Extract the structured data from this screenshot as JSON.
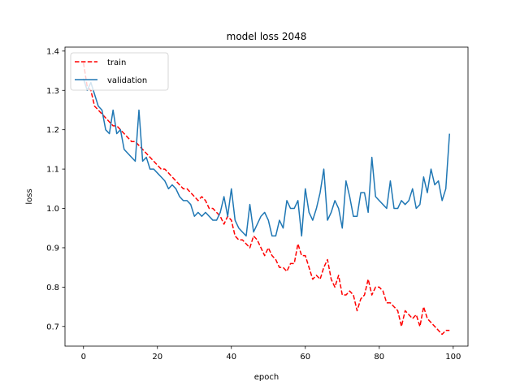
{
  "chart_data": {
    "type": "line",
    "title": "model loss 2048",
    "xlabel": "epoch",
    "ylabel": "loss",
    "xlim": [
      -5,
      104
    ],
    "ylim": [
      0.65,
      1.41
    ],
    "xticks": [
      0,
      20,
      40,
      60,
      80,
      100
    ],
    "yticks": [
      0.7,
      0.8,
      0.9,
      1.0,
      1.1,
      1.2,
      1.3,
      1.4
    ],
    "xtick_labels": [
      "0",
      "20",
      "40",
      "60",
      "80",
      "100"
    ],
    "ytick_labels": [
      "0.7",
      "0.8",
      "0.9",
      "1.0",
      "1.1",
      "1.2",
      "1.3",
      "1.4"
    ],
    "grid": false,
    "legend_position": "top-left",
    "series": [
      {
        "name": "train",
        "color": "#ff0000",
        "style": "dashed",
        "values": [
          1.37,
          1.31,
          1.3,
          1.26,
          1.25,
          1.24,
          1.23,
          1.22,
          1.21,
          1.21,
          1.2,
          1.19,
          1.18,
          1.17,
          1.17,
          1.16,
          1.15,
          1.14,
          1.13,
          1.12,
          1.11,
          1.1,
          1.1,
          1.09,
          1.08,
          1.07,
          1.06,
          1.05,
          1.05,
          1.04,
          1.03,
          1.02,
          1.03,
          1.02,
          1.0,
          1.0,
          0.99,
          0.98,
          0.96,
          0.98,
          0.97,
          0.93,
          0.92,
          0.92,
          0.91,
          0.9,
          0.93,
          0.92,
          0.9,
          0.88,
          0.9,
          0.88,
          0.87,
          0.85,
          0.85,
          0.84,
          0.86,
          0.86,
          0.91,
          0.88,
          0.88,
          0.85,
          0.82,
          0.83,
          0.82,
          0.85,
          0.87,
          0.82,
          0.8,
          0.83,
          0.78,
          0.78,
          0.79,
          0.78,
          0.74,
          0.77,
          0.78,
          0.82,
          0.78,
          0.8,
          0.8,
          0.79,
          0.76,
          0.76,
          0.75,
          0.74,
          0.7,
          0.74,
          0.73,
          0.72,
          0.73,
          0.7,
          0.75,
          0.72,
          0.71,
          0.7,
          0.69,
          0.68,
          0.69,
          0.69
        ]
      },
      {
        "name": "validation",
        "color": "#1f77b4",
        "style": "solid",
        "values": [
          1.33,
          1.3,
          1.32,
          1.29,
          1.26,
          1.25,
          1.2,
          1.19,
          1.25,
          1.19,
          1.2,
          1.15,
          1.14,
          1.13,
          1.12,
          1.25,
          1.12,
          1.13,
          1.1,
          1.1,
          1.09,
          1.08,
          1.07,
          1.05,
          1.06,
          1.05,
          1.03,
          1.02,
          1.02,
          1.01,
          0.98,
          0.99,
          0.98,
          0.99,
          0.98,
          0.97,
          0.97,
          0.99,
          1.03,
          0.98,
          1.05,
          0.97,
          0.95,
          0.94,
          0.93,
          1.01,
          0.94,
          0.96,
          0.98,
          0.99,
          0.97,
          0.93,
          0.93,
          0.97,
          0.95,
          1.02,
          1.0,
          1.0,
          1.02,
          0.93,
          1.05,
          0.99,
          0.97,
          1.0,
          1.04,
          1.1,
          0.97,
          0.99,
          1.02,
          1.0,
          0.95,
          1.07,
          1.03,
          0.98,
          0.98,
          1.04,
          1.04,
          0.99,
          1.13,
          1.03,
          1.02,
          1.01,
          1.0,
          1.07,
          1.0,
          1.0,
          1.02,
          1.01,
          1.02,
          1.05,
          1.0,
          1.01,
          1.08,
          1.04,
          1.1,
          1.06,
          1.07,
          1.02,
          1.05,
          1.19
        ]
      }
    ]
  }
}
